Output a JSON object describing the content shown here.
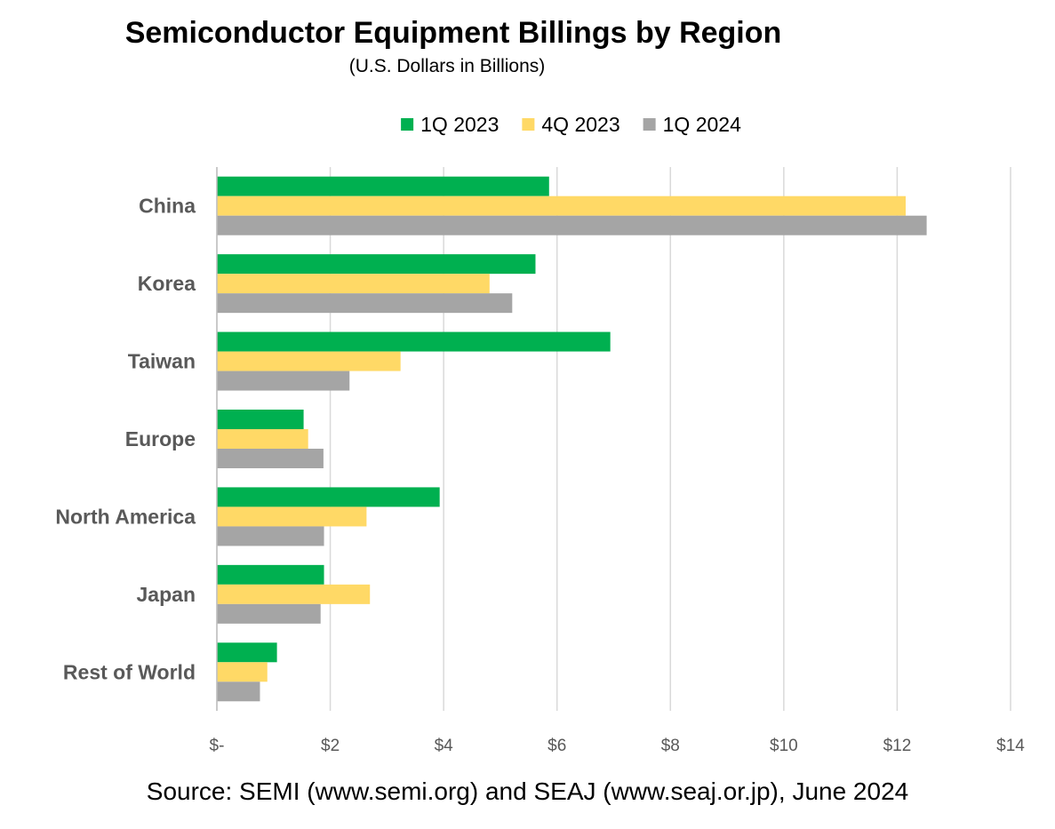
{
  "chart_data": {
    "type": "bar",
    "orientation": "horizontal",
    "title": "Semiconductor Equipment Billings by Region",
    "subtitle": "(U.S. Dollars in Billions)",
    "categories": [
      "China",
      "Korea",
      "Taiwan",
      "Europe",
      "North America",
      "Japan",
      "Rest of World"
    ],
    "series": [
      {
        "name": "1Q 2023",
        "color": "#00B050",
        "values": [
          5.86,
          5.62,
          6.94,
          1.53,
          3.93,
          1.89,
          1.06
        ]
      },
      {
        "name": "4Q 2023",
        "color": "#FFD966",
        "values": [
          12.15,
          4.81,
          3.24,
          1.61,
          2.64,
          2.7,
          0.89
        ]
      },
      {
        "name": "1Q 2024",
        "color": "#A5A5A5",
        "values": [
          12.52,
          5.21,
          2.34,
          1.88,
          1.89,
          1.83,
          0.76
        ]
      }
    ],
    "xlim": [
      0,
      14
    ],
    "x_ticks": [
      {
        "value": 0,
        "label": "$-"
      },
      {
        "value": 2,
        "label": "$2"
      },
      {
        "value": 4,
        "label": "$4"
      },
      {
        "value": 6,
        "label": "$6"
      },
      {
        "value": 8,
        "label": "$8"
      },
      {
        "value": 10,
        "label": "$10"
      },
      {
        "value": 12,
        "label": "$12"
      },
      {
        "value": 14,
        "label": "$14"
      }
    ],
    "grid": true,
    "legend_position": "top",
    "source": "Source: SEMI (www.semi.org) and SEAJ (www.seaj.or.jp), June 2024"
  }
}
